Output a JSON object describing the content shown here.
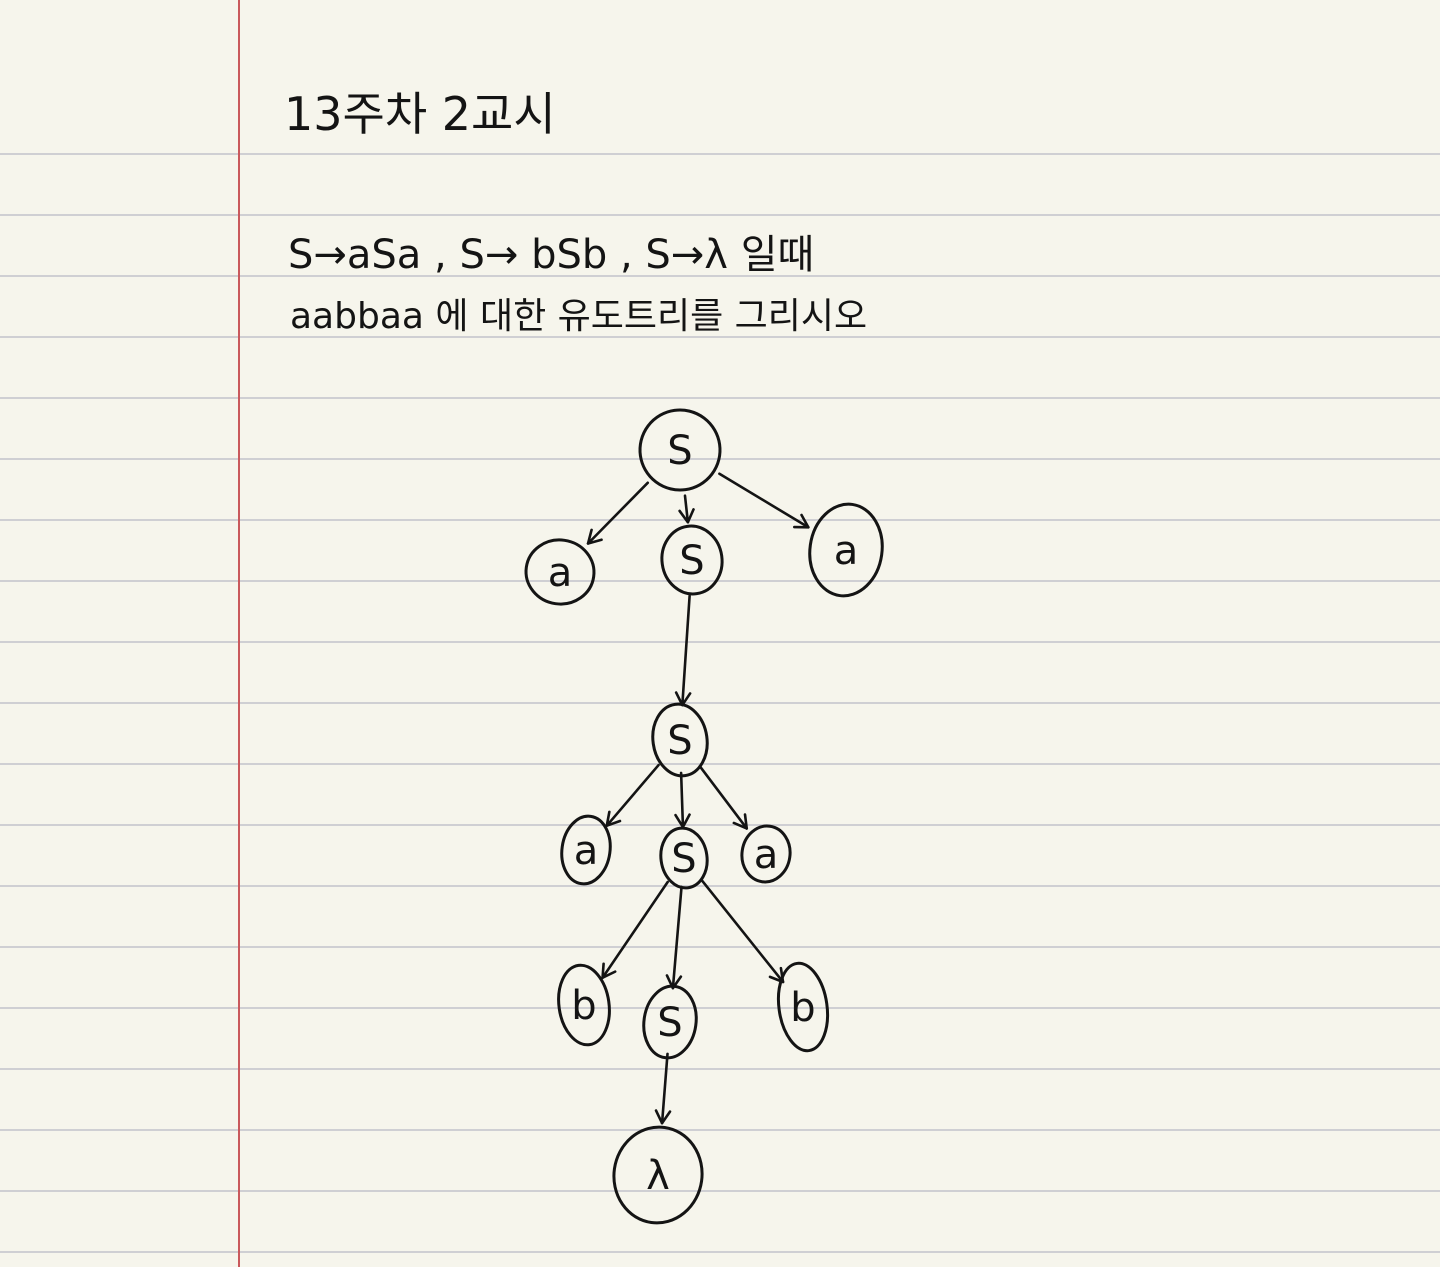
{
  "page": {
    "title": "13주차 2교시",
    "problem_line1": "S→aSa , S→ bSb , S→λ 일때",
    "problem_line2": "aabbaa 에 대한 유도트리를 그리시오"
  },
  "colors": {
    "paper": "#f6f5ec",
    "rule_line": "#cfcfd3",
    "margin_line": "#c9595c",
    "ink": "#141414"
  },
  "tree": {
    "nodes": [
      {
        "id": "s1",
        "label": "S"
      },
      {
        "id": "a1",
        "label": "a"
      },
      {
        "id": "s2",
        "label": "S"
      },
      {
        "id": "a2",
        "label": "a"
      },
      {
        "id": "s3",
        "label": "S"
      },
      {
        "id": "a3",
        "label": "a"
      },
      {
        "id": "s4",
        "label": "S"
      },
      {
        "id": "a4",
        "label": "a"
      },
      {
        "id": "b1",
        "label": "b"
      },
      {
        "id": "s5",
        "label": "S"
      },
      {
        "id": "b2",
        "label": "b"
      },
      {
        "id": "lam",
        "label": "λ"
      }
    ],
    "edges": [
      [
        "s1",
        "a1"
      ],
      [
        "s1",
        "s2"
      ],
      [
        "s1",
        "a2"
      ],
      [
        "s2",
        "s3"
      ],
      [
        "s3",
        "a3"
      ],
      [
        "s3",
        "s4"
      ],
      [
        "s3",
        "a4"
      ],
      [
        "s4",
        "b1"
      ],
      [
        "s4",
        "s5"
      ],
      [
        "s4",
        "b2"
      ],
      [
        "s5",
        "lam"
      ]
    ]
  }
}
